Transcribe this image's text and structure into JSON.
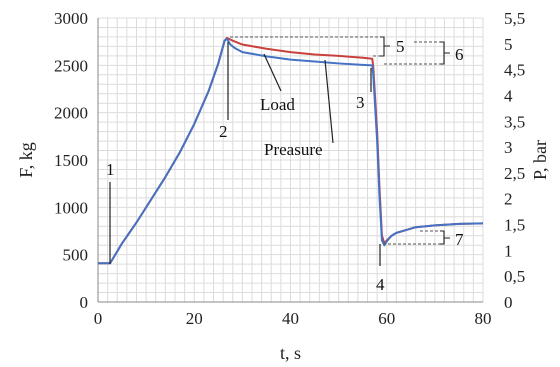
{
  "chart_data": {
    "type": "line",
    "xlabel": "t, s",
    "ylabel_left": "F, kg",
    "ylabel_right": "P, bar",
    "xlim": [
      0,
      80
    ],
    "ylim_left": [
      0,
      3000
    ],
    "ylim_right": [
      0,
      5.5
    ],
    "x_ticks": [
      "0",
      "20",
      "40",
      "60",
      "80"
    ],
    "y_left_ticks": [
      "0",
      "500",
      "1000",
      "1500",
      "2000",
      "2500",
      "3000"
    ],
    "y_right_ticks": [
      "0",
      "0,5",
      "1",
      "1,5",
      "2",
      "2,5",
      "3",
      "3,5",
      "4",
      "4,5",
      "5",
      "5,5"
    ],
    "grid": true,
    "colors": {
      "load": "#c8413c",
      "pressure": "#4472c4"
    },
    "series": [
      {
        "key": "load",
        "axis": "left",
        "x": [
          0,
          2.5,
          3,
          5,
          8,
          11,
          14,
          17,
          20,
          23,
          25,
          26.3,
          26.8,
          28,
          30,
          35,
          40,
          45,
          50,
          55,
          57,
          57.2,
          58,
          58.5,
          59,
          59.5,
          60,
          61,
          62,
          64,
          66,
          70,
          75,
          80
        ],
        "y": [
          410,
          410,
          450,
          620,
          840,
          1080,
          1320,
          1580,
          1880,
          2230,
          2520,
          2760,
          2790,
          2760,
          2720,
          2675,
          2640,
          2615,
          2600,
          2580,
          2570,
          2480,
          1800,
          1200,
          700,
          620,
          650,
          700,
          730,
          760,
          790,
          810,
          825,
          830
        ]
      },
      {
        "key": "pressure",
        "axis": "left",
        "x": [
          0,
          2.5,
          3,
          5,
          8,
          11,
          14,
          17,
          20,
          23,
          25,
          26.3,
          26.8,
          27.5,
          28.5,
          30,
          35,
          40,
          45,
          50,
          55,
          57,
          57.2,
          58,
          58.5,
          59,
          59.5,
          60,
          61,
          62,
          64,
          66,
          70,
          75,
          80
        ],
        "y": [
          410,
          410,
          450,
          620,
          840,
          1080,
          1320,
          1580,
          1880,
          2230,
          2520,
          2760,
          2780,
          2720,
          2680,
          2640,
          2595,
          2560,
          2540,
          2520,
          2505,
          2500,
          2400,
          1700,
          1100,
          650,
          600,
          640,
          700,
          730,
          760,
          790,
          810,
          825,
          830
        ]
      }
    ],
    "annotations": [
      {
        "id": "1",
        "text": "1"
      },
      {
        "id": "2",
        "text": "2"
      },
      {
        "id": "3",
        "text": "3"
      },
      {
        "id": "4",
        "text": "4"
      },
      {
        "id": "5",
        "text": "5"
      },
      {
        "id": "6",
        "text": "6"
      },
      {
        "id": "7",
        "text": "7"
      },
      {
        "id": "load",
        "text": "Load"
      },
      {
        "id": "pressure",
        "text": "Preasure"
      }
    ]
  }
}
